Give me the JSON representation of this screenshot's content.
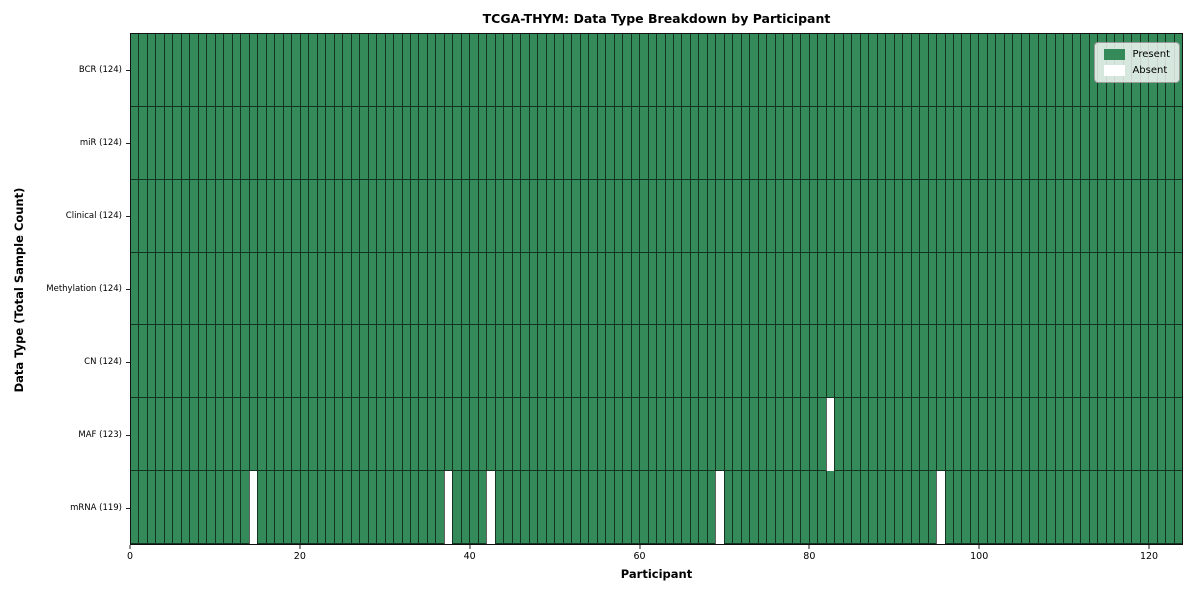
{
  "chart_data": {
    "type": "heatmap",
    "title": "TCGA-THYM: Data Type Breakdown by Participant",
    "xlabel": "Participant",
    "ylabel": "Data Type (Total Sample Count)",
    "n_participants": 124,
    "xlim": [
      0,
      124
    ],
    "x_ticks": [
      0,
      20,
      40,
      60,
      80,
      100,
      120
    ],
    "grid": false,
    "legend_position": "upper right",
    "rows": [
      {
        "label": "BCR (124)",
        "total_present": 124,
        "absent_participants": []
      },
      {
        "label": "miR (124)",
        "total_present": 124,
        "absent_participants": []
      },
      {
        "label": "Clinical (124)",
        "total_present": 124,
        "absent_participants": []
      },
      {
        "label": "Methylation (124)",
        "total_present": 124,
        "absent_participants": []
      },
      {
        "label": "CN (124)",
        "total_present": 124,
        "absent_participants": []
      },
      {
        "label": "MAF (123)",
        "total_present": 123,
        "absent_participants": [
          82
        ]
      },
      {
        "label": "mRNA (119)",
        "total_present": 119,
        "absent_participants": [
          14,
          37,
          42,
          69,
          95
        ]
      }
    ],
    "legend": [
      {
        "label": "Present",
        "color": "#348a58"
      },
      {
        "label": "Absent",
        "color": "#ffffff"
      }
    ],
    "colors": {
      "present": "#348a58",
      "absent": "#ffffff",
      "cell_edge": "rgba(0,0,0,0.62)",
      "axis": "#111111"
    }
  }
}
